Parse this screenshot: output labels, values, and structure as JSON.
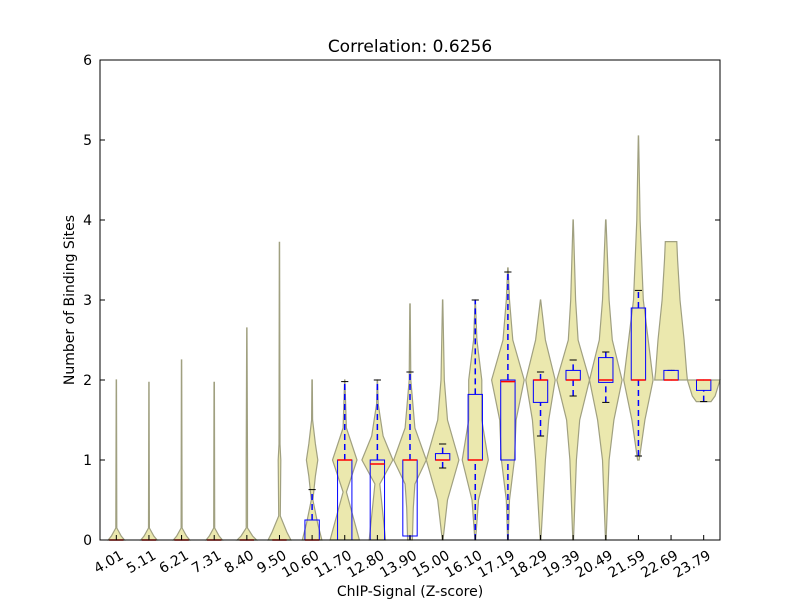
{
  "chart_data": {
    "type": "violin",
    "title": "Correlation: 0.6256",
    "xlabel": "ChIP-Signal (Z-score)",
    "ylabel": "Number of Binding Sites",
    "categories": [
      "4.01",
      "5.11",
      "6.21",
      "7.31",
      "8.40",
      "9.50",
      "10.60",
      "11.70",
      "12.80",
      "13.90",
      "15.00",
      "16.10",
      "17.19",
      "18.29",
      "19.39",
      "20.49",
      "21.59",
      "22.69",
      "23.79"
    ],
    "ylim": [
      0,
      6
    ],
    "yticks": [
      0,
      1,
      2,
      3,
      4,
      5,
      6
    ],
    "violin_color": "#e8e4a0",
    "violin_edge": "#a0a080",
    "box_color": "#0000ff",
    "median_color": "#ff0000",
    "boxes": [
      {
        "low": 0,
        "q1": 0,
        "median": 0,
        "q3": 0,
        "high": 0
      },
      {
        "low": 0,
        "q1": 0,
        "median": 0,
        "q3": 0,
        "high": 0
      },
      {
        "low": 0,
        "q1": 0,
        "median": 0,
        "q3": 0,
        "high": 0
      },
      {
        "low": 0,
        "q1": 0,
        "median": 0,
        "q3": 0,
        "high": 0
      },
      {
        "low": 0,
        "q1": 0,
        "median": 0,
        "q3": 0,
        "high": 0
      },
      {
        "low": 0,
        "q1": 0,
        "median": 0,
        "q3": 0,
        "high": 0
      },
      {
        "low": 0,
        "q1": 0,
        "median": 0,
        "q3": 0.25,
        "high": 0.63
      },
      {
        "low": 0,
        "q1": 0,
        "median": 1,
        "q3": 1,
        "high": 1.98
      },
      {
        "low": 0,
        "q1": 0,
        "median": 0.95,
        "q3": 1,
        "high": 2
      },
      {
        "low": 0,
        "q1": 0.05,
        "median": 1,
        "q3": 1,
        "high": 2.1
      },
      {
        "low": 0.9,
        "q1": 1,
        "median": 1,
        "q3": 1.08,
        "high": 1.2
      },
      {
        "low": 0,
        "q1": 1,
        "median": 1,
        "q3": 1.82,
        "high": 3
      },
      {
        "low": 0,
        "q1": 1,
        "median": 1.98,
        "q3": 2,
        "high": 3.35
      },
      {
        "low": 1.3,
        "q1": 1.72,
        "median": 2,
        "q3": 2,
        "high": 2.1
      },
      {
        "low": 1.8,
        "q1": 2,
        "median": 2,
        "q3": 2.12,
        "high": 2.25
      },
      {
        "low": 1.72,
        "q1": 1.97,
        "median": 2,
        "q3": 2.28,
        "high": 2.35
      },
      {
        "low": 1.05,
        "q1": 2,
        "median": 2,
        "q3": 2.9,
        "high": 3.12
      },
      {
        "low": 2,
        "q1": 2,
        "median": 2,
        "q3": 2.12,
        "high": 2.12
      },
      {
        "low": 1.73,
        "q1": 1.87,
        "median": 2,
        "q3": 2,
        "high": 2
      }
    ],
    "violins": [
      {
        "y": [
          0,
          0.05,
          0.15,
          2
        ],
        "width": [
          0.5,
          0.3,
          0.03,
          0.01
        ]
      },
      {
        "y": [
          0,
          0.05,
          0.15,
          1.97
        ],
        "width": [
          0.5,
          0.3,
          0.03,
          0.01
        ]
      },
      {
        "y": [
          0,
          0.05,
          0.15,
          2.25
        ],
        "width": [
          0.5,
          0.3,
          0.03,
          0.01
        ]
      },
      {
        "y": [
          0,
          0.05,
          0.15,
          1.97
        ],
        "width": [
          0.5,
          0.3,
          0.03,
          0.01
        ]
      },
      {
        "y": [
          0,
          0.05,
          0.15,
          1,
          2.65
        ],
        "width": [
          0.6,
          0.35,
          0.04,
          0.04,
          0.01
        ]
      },
      {
        "y": [
          0,
          0.1,
          0.3,
          1,
          1.2,
          3.72
        ],
        "width": [
          0.7,
          0.45,
          0.05,
          0.08,
          0.03,
          0.01
        ]
      },
      {
        "y": [
          0,
          0.2,
          0.5,
          0.8,
          1,
          1.2,
          1.5,
          2
        ],
        "width": [
          0.6,
          0.35,
          0.05,
          0.2,
          0.35,
          0.2,
          0.03,
          0.01
        ]
      },
      {
        "y": [
          0,
          0.3,
          0.6,
          1,
          1.4,
          2
        ],
        "width": [
          0.9,
          0.5,
          0.1,
          0.75,
          0.1,
          0.01
        ]
      },
      {
        "y": [
          0,
          0.4,
          0.7,
          1,
          1.3,
          1.7,
          2
        ],
        "width": [
          0.5,
          0.3,
          0.15,
          0.95,
          0.35,
          0.05,
          0.01
        ]
      },
      {
        "y": [
          0,
          0.4,
          0.7,
          1,
          1.4,
          2,
          2.95
        ],
        "width": [
          0.15,
          0.2,
          0.3,
          1,
          0.3,
          0.05,
          0.01
        ]
      },
      {
        "y": [
          0,
          0.5,
          1,
          1.5,
          2,
          3
        ],
        "width": [
          0.02,
          0.3,
          1,
          0.3,
          0.1,
          0.01
        ]
      },
      {
        "y": [
          0,
          0.5,
          1,
          1.5,
          2,
          2.5,
          3
        ],
        "width": [
          0.02,
          0.2,
          0.8,
          0.4,
          0.4,
          0.1,
          0.01
        ]
      },
      {
        "y": [
          0,
          0.5,
          1,
          1.5,
          2,
          2.5,
          3,
          3.4
        ],
        "width": [
          0.02,
          0.1,
          0.4,
          0.5,
          1,
          0.3,
          0.1,
          0.01
        ]
      },
      {
        "y": [
          0,
          1,
          1.5,
          2,
          2.5,
          3
        ],
        "width": [
          0.02,
          0.3,
          0.5,
          0.9,
          0.3,
          0.01
        ]
      },
      {
        "y": [
          0,
          1,
          1.5,
          2,
          2.5,
          3,
          4
        ],
        "width": [
          0.02,
          0.2,
          0.4,
          1,
          0.3,
          0.15,
          0.01
        ]
      },
      {
        "y": [
          0,
          1,
          1.5,
          2,
          2.5,
          3,
          4
        ],
        "width": [
          0.02,
          0.2,
          0.5,
          1,
          0.4,
          0.2,
          0.01
        ]
      },
      {
        "y": [
          1,
          1.5,
          2,
          2.5,
          3,
          4,
          5.05
        ],
        "width": [
          0.05,
          0.4,
          0.9,
          0.6,
          0.3,
          0.1,
          0.01
        ]
      },
      {
        "y": [
          2,
          2.1,
          2.5,
          3,
          3.5,
          3.73
        ],
        "width": [
          1,
          0.95,
          0.8,
          0.55,
          0.4,
          0.35
        ]
      },
      {
        "y": [
          1.73,
          1.8,
          2
        ],
        "width": [
          0.45,
          0.7,
          1
        ]
      }
    ]
  }
}
